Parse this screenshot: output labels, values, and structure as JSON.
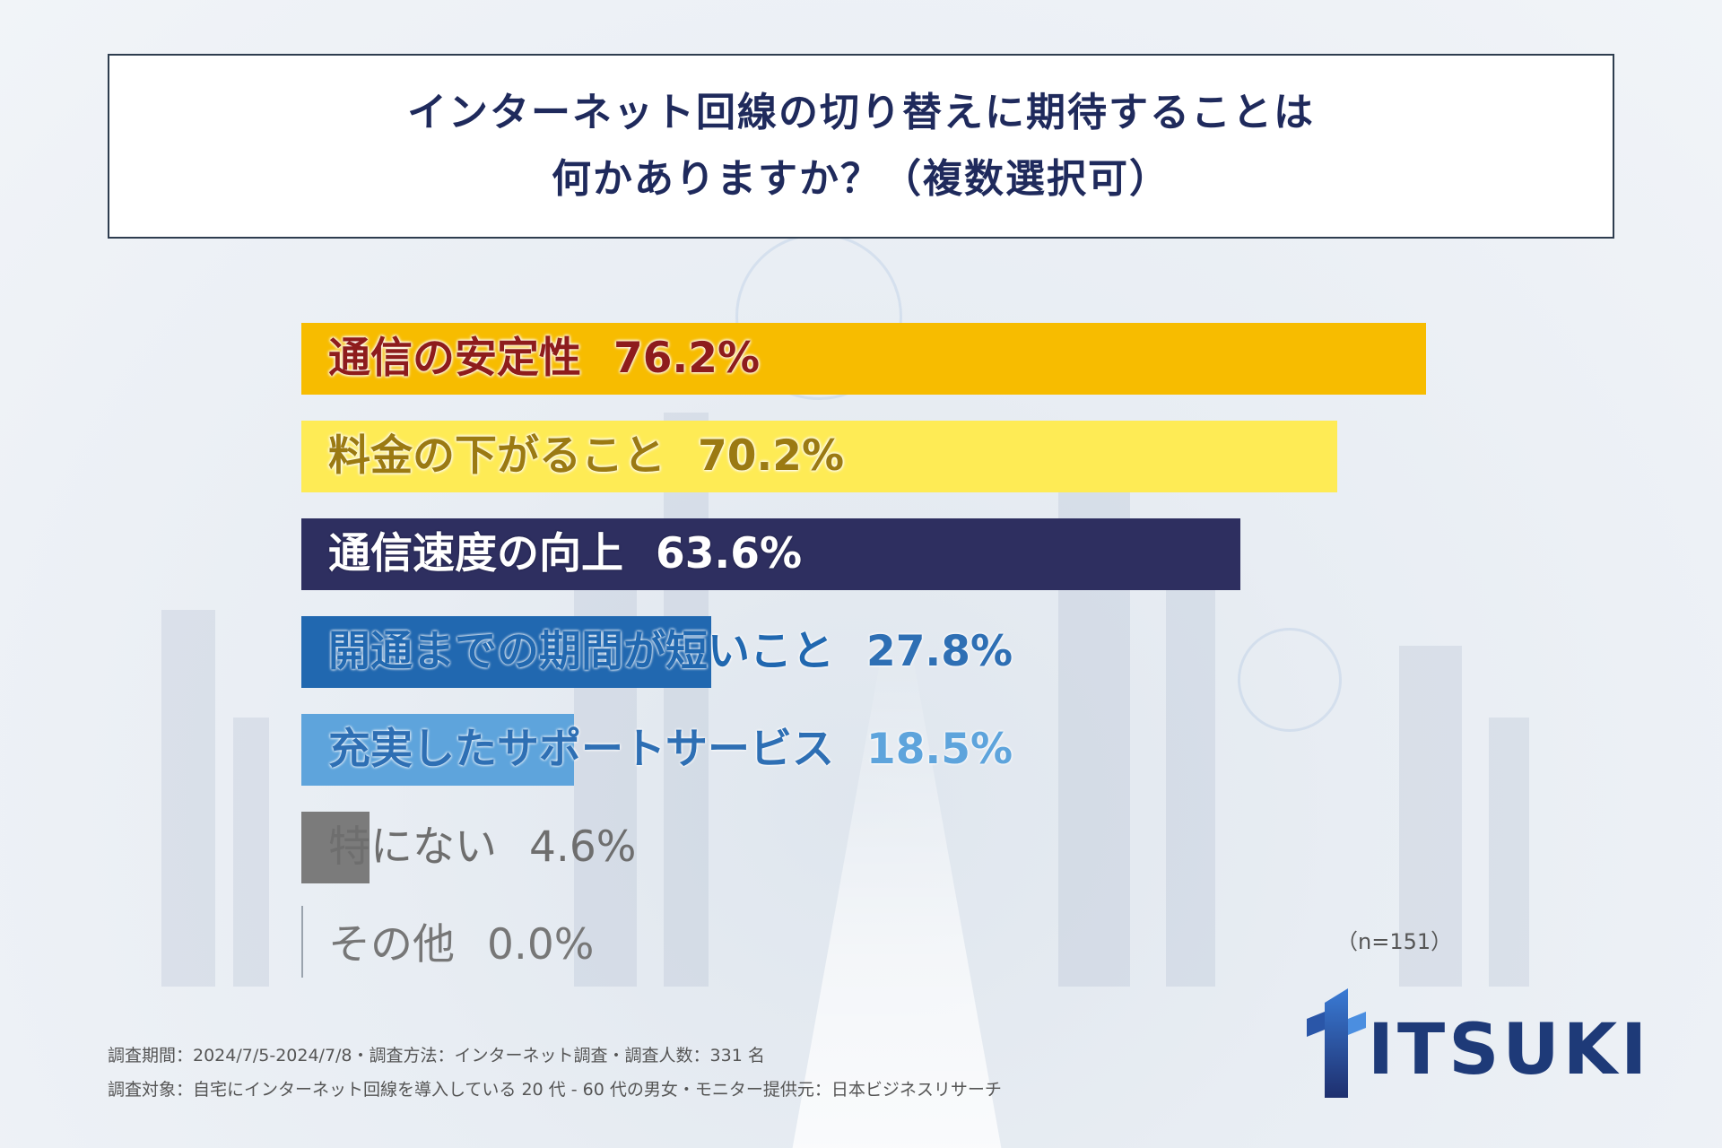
{
  "title": "インターネット回線の切り替えに期待することは\n何かありますか？（複数選択可）",
  "n_note": "（n=151）",
  "footnotes": [
    "調査期間：2024/7/5-2024/7/8・調査方法：インターネット調査・調査人数：331 名",
    "調査対象：自宅にインターネット回線を導入している 20 代 - 60 代の男女・モニター提供元：日本ビジネスリサーチ"
  ],
  "logo": {
    "text": "ITSUKI"
  },
  "chart_data": {
    "type": "bar",
    "orientation": "horizontal",
    "categories": [
      "通信の安定性",
      "料金の下がること",
      "通信速度の向上",
      "開通までの期間が短いこと",
      "充実したサポートサービス",
      "特にない",
      "その他"
    ],
    "values": [
      76.2,
      70.2,
      63.6,
      27.8,
      18.5,
      4.6,
      0.0
    ],
    "value_labels": [
      "76.2%",
      "70.2%",
      "63.6%",
      "27.8%",
      "18.5%",
      "4.6%",
      "0.0%"
    ],
    "colors": [
      "#f7bc00",
      "#feeb55",
      "#2e2f60",
      "#2168b0",
      "#5ea4dc",
      "#7b7b7b",
      "#b0b0b0"
    ],
    "label_colors": [
      "#8e1c1c",
      "#9b7a12",
      "#ffffff",
      "#2168b0",
      "#2e6fb4",
      "#6e6e6e",
      "#777777"
    ],
    "xlim": [
      0,
      100
    ],
    "grid": false,
    "legend": "none"
  }
}
